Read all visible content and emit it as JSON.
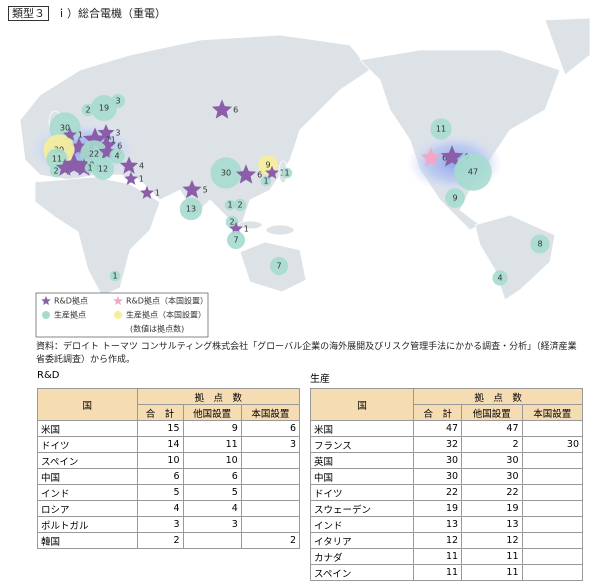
{
  "header": {
    "tag": "類型３",
    "title": "ｉ）総合電機（重電）"
  },
  "map": {
    "markers": [
      30,
      19,
      3,
      2,
      1,
      3,
      11,
      6,
      4,
      30,
      2,
      22,
      3,
      4,
      11,
      2,
      4,
      10,
      4,
      1,
      12,
      4,
      1,
      1,
      6,
      30,
      9,
      1,
      6,
      1,
      1,
      5,
      13,
      1,
      2,
      2,
      1,
      7,
      7,
      1,
      11,
      6,
      9,
      47,
      9,
      8,
      4
    ],
    "legend": [
      "R&D拠点",
      "R&D拠点（本国設置）",
      "生産拠点",
      "生産拠点（本国設置）",
      "(数値は拠点数)"
    ]
  },
  "source": "資料：デロイト トーマツ コンサルティング株式会社「グローバル企業の海外展開及びリスク管理手法にかかる調査・分析」（経済産業省委託調査）から作成。",
  "tables": [
    {
      "caption": "R&D",
      "head": [
        "国",
        "拠　点　数",
        "合　計",
        "他国設置",
        "本国設置"
      ],
      "rows": [
        [
          "米国",
          15,
          9,
          6
        ],
        [
          "ドイツ",
          14,
          11,
          3
        ],
        [
          "スペイン",
          10,
          10,
          null
        ],
        [
          "中国",
          6,
          6,
          null
        ],
        [
          "インド",
          5,
          5,
          null
        ],
        [
          "ロシア",
          4,
          4,
          null
        ],
        [
          "ポルトガル",
          3,
          3,
          null
        ],
        [
          "韓国",
          2,
          null,
          2
        ]
      ]
    },
    {
      "caption": "生産",
      "head": [
        "国",
        "拠　点　数",
        "合　計",
        "他国設置",
        "本国設置"
      ],
      "rows": [
        [
          "米国",
          47,
          47,
          null
        ],
        [
          "フランス",
          32,
          2,
          30
        ],
        [
          "英国",
          30,
          30,
          null
        ],
        [
          "中国",
          30,
          30,
          null
        ],
        [
          "ドイツ",
          22,
          22,
          null
        ],
        [
          "スウェーデン",
          19,
          19,
          null
        ],
        [
          "インド",
          13,
          13,
          null
        ],
        [
          "イタリア",
          12,
          12,
          null
        ],
        [
          "カナダ",
          11,
          11,
          null
        ],
        [
          "スペイン",
          11,
          11,
          null
        ]
      ]
    }
  ]
}
